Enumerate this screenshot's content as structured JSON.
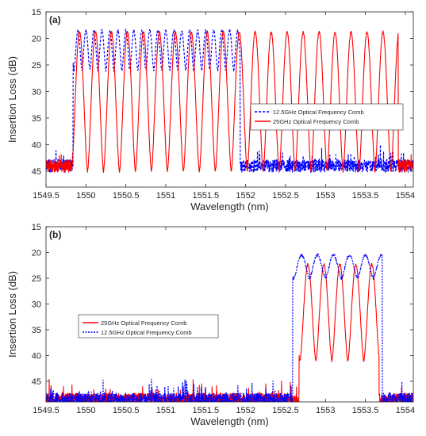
{
  "chart_data": [
    {
      "type": "line",
      "panel_label": "(a)",
      "xlabel": "Wavelength (nm)",
      "ylabel": "Insertion Loss (dB)",
      "xlim": [
        1549.5,
        1554.1
      ],
      "ylim": [
        15,
        48
      ],
      "y_reversed": true,
      "xticks": [
        "1549.5",
        "1550",
        "1550.5",
        "1551",
        "1551.5",
        "1552",
        "1552.5",
        "1553",
        "1553.5",
        "1554"
      ],
      "yticks": [
        "15",
        "20",
        "25",
        "30",
        "35",
        "40",
        "45"
      ],
      "legend": {
        "position": "center-right"
      },
      "series": [
        {
          "name": "12.5GHz Optical Frequency Comb",
          "color": "#0000ff",
          "line_style": "dashed",
          "passband": [
            1549.85,
            1551.92
          ],
          "comb_period_nm": 0.1,
          "peak_loss_db": 18.5,
          "trough_loss_db": 26,
          "floor_loss_db": 44
        },
        {
          "name": "25GHz Optical Frequency Comb",
          "color": "#ff0000",
          "line_style": "solid",
          "passband": [
            1549.82,
            1553.9
          ],
          "comb_period_nm": 0.2,
          "peak_loss_db": 18.8,
          "trough_loss_db": 45,
          "floor_loss_db": 44
        }
      ]
    },
    {
      "type": "line",
      "panel_label": "(b)",
      "xlabel": "Wavelength (nm)",
      "ylabel": "Insertion Loss (dB)",
      "xlim": [
        1549.5,
        1554.1
      ],
      "ylim": [
        15,
        49
      ],
      "y_reversed": true,
      "xticks": [
        "1549.5",
        "1550",
        "1550.5",
        "1551",
        "1551.5",
        "1552",
        "1552.5",
        "1553",
        "1553.5",
        "1554"
      ],
      "yticks": [
        "15",
        "20",
        "25",
        "30",
        "35",
        "40",
        "45"
      ],
      "legend": {
        "position": "center-left"
      },
      "series": [
        {
          "name": "25GHz Optical Frequency Comb",
          "color": "#ff0000",
          "line_style": "solid",
          "passband": [
            1552.68,
            1553.66
          ],
          "comb_period_nm": 0.2,
          "peak_loss_db": 22.3,
          "trough_loss_db": 41,
          "floor_loss_db": 48.5
        },
        {
          "name": "12.5GHz Optical Frequency Comb",
          "color": "#0000ff",
          "line_style": "dotted",
          "passband": [
            1552.6,
            1553.7
          ],
          "comb_period_nm": 0.2,
          "peak_loss_db": 20.5,
          "trough_loss_db": 25,
          "floor_loss_db": 48.5
        }
      ]
    }
  ]
}
